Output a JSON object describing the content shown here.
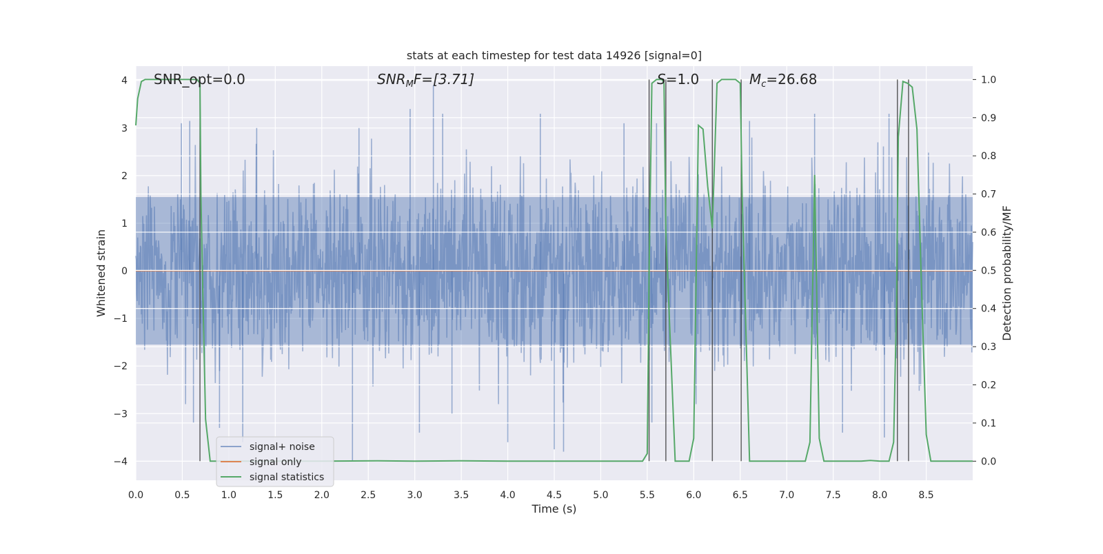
{
  "chart_data": {
    "type": "line",
    "title": "stats at each timestep for test data 14926 [signal=0]",
    "xlabel": "Time (s)",
    "ylabel": "Whitened strain",
    "ylabel_right": "Detection probability/MF",
    "xlim": [
      0.0,
      9.0
    ],
    "ylim": [
      -4.4,
      4.3
    ],
    "ylim_right": [
      -0.05,
      1.035
    ],
    "x_ticks": [
      0.0,
      0.5,
      1.0,
      1.5,
      2.0,
      2.5,
      3.0,
      3.5,
      4.0,
      4.5,
      5.0,
      5.5,
      6.0,
      6.5,
      7.0,
      7.5,
      8.0,
      8.5
    ],
    "x_tick_labels": [
      "0.0",
      "0.5",
      "1.0",
      "1.5",
      "2.0",
      "2.5",
      "3.0",
      "3.5",
      "4.0",
      "4.5",
      "5.0",
      "5.5",
      "6.0",
      "6.5",
      "7.0",
      "7.5",
      "8.0",
      "8.5"
    ],
    "y_ticks": [
      -4,
      -3,
      -2,
      -1,
      0,
      1,
      2,
      3,
      4
    ],
    "y_tick_labels": [
      "−4",
      "−3",
      "−2",
      "−1",
      "0",
      "1",
      "2",
      "3",
      "4"
    ],
    "y_ticks_right": [
      0.0,
      0.1,
      0.2,
      0.3,
      0.4,
      0.5,
      0.6,
      0.7,
      0.8,
      0.9,
      1.0
    ],
    "y_tick_labels_right": [
      "0.0",
      "0.1",
      "0.2",
      "0.3",
      "0.4",
      "0.5",
      "0.6",
      "0.7",
      "0.8",
      "0.9",
      "1.0"
    ],
    "grid": true,
    "legend_position": "lower-left",
    "annotations": {
      "snr_opt": "SNR_opt=0.0",
      "snr_mf_italic": "SNR",
      "snr_mf_sub": "M",
      "snr_mf_rest": "F=[3.71]",
      "s_italic": "S",
      "s_rest": "=1.0",
      "mc_italic": "M",
      "mc_sub": "c",
      "mc_rest": "=26.68"
    },
    "series": [
      {
        "name": "signal+ noise",
        "color": "#4c72b0",
        "description_envelope": "white noise, typical amplitude about ±1.7, peaks to about ±4",
        "peak_points": [
          [
            0.49,
            3.1
          ],
          [
            0.58,
            3.15
          ],
          [
            1.3,
            3.0
          ],
          [
            2.4,
            3.0
          ],
          [
            2.95,
            3.4
          ],
          [
            3.2,
            3.9
          ],
          [
            3.3,
            3.3
          ],
          [
            4.35,
            3.3
          ],
          [
            5.25,
            3.1
          ],
          [
            5.6,
            3.1
          ],
          [
            6.6,
            3.15
          ],
          [
            7.3,
            3.3
          ],
          [
            8.1,
            3.3
          ],
          [
            0.62,
            -3.2
          ],
          [
            0.9,
            -3.3
          ],
          [
            1.15,
            -3.6
          ],
          [
            2.33,
            -4.0
          ],
          [
            3.05,
            -3.4
          ],
          [
            3.4,
            -3.0
          ],
          [
            4.0,
            -3.6
          ],
          [
            4.5,
            -3.75
          ],
          [
            4.6,
            -3.8
          ],
          [
            5.55,
            -3.2
          ],
          [
            7.6,
            -3.4
          ],
          [
            8.05,
            -3.5
          ]
        ]
      },
      {
        "name": "signal only",
        "color": "#dd8452",
        "x": [
          0.0,
          9.0
        ],
        "y": [
          0.0,
          0.0
        ]
      },
      {
        "name": "signal statistics",
        "color": "#55a868",
        "axis": "right",
        "x": [
          0.0,
          0.02,
          0.06,
          0.1,
          0.2,
          0.4,
          0.6,
          0.66,
          0.69,
          0.7,
          0.72,
          0.75,
          0.8,
          1.0,
          2.0,
          2.6,
          3.0,
          3.5,
          4.0,
          5.0,
          5.45,
          5.5,
          5.52,
          5.55,
          5.6,
          5.66,
          5.68,
          5.7,
          5.8,
          5.9,
          5.95,
          6.0,
          6.05,
          6.1,
          6.15,
          6.2,
          6.25,
          6.3,
          6.4,
          6.45,
          6.5,
          6.52,
          6.6,
          6.7,
          7.0,
          7.2,
          7.25,
          7.3,
          7.35,
          7.4,
          7.6,
          7.8,
          7.9,
          8.0,
          8.1,
          8.15,
          8.18,
          8.2,
          8.25,
          8.3,
          8.35,
          8.4,
          8.45,
          8.5,
          8.55,
          8.6,
          9.0
        ],
        "y": [
          0.88,
          0.95,
          0.995,
          1.0,
          1.0,
          1.0,
          1.0,
          1.0,
          0.99,
          0.7,
          0.45,
          0.11,
          0.0,
          0.0,
          0.0,
          0.001,
          0.0,
          0.001,
          0.0,
          0.0,
          0.0,
          0.02,
          0.5,
          0.99,
          1.0,
          1.0,
          0.99,
          0.6,
          0.0,
          0.0,
          0.0,
          0.06,
          0.88,
          0.87,
          0.72,
          0.61,
          0.99,
          1.0,
          1.0,
          1.0,
          0.99,
          0.7,
          0.0,
          0.0,
          0.0,
          0.0,
          0.05,
          0.75,
          0.06,
          0.0,
          0.0,
          0.0,
          0.002,
          0.0,
          0.0,
          0.05,
          0.4,
          0.85,
          0.995,
          0.99,
          0.98,
          0.87,
          0.45,
          0.07,
          0.0,
          0.0,
          0.0
        ]
      }
    ],
    "vertical_markers_x": [
      0.69,
      5.52,
      5.7,
      6.2,
      6.51,
      8.19,
      8.31
    ]
  }
}
